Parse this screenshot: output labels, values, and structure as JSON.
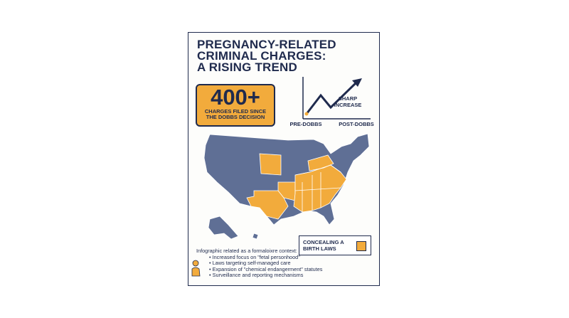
{
  "title_lines": [
    "PREGNANCY-RELATED",
    "CRIMINAL CHARGES:",
    "A RISING TREND"
  ],
  "stat": {
    "number": "400+",
    "caption_lines": [
      "CHARGES FILED SINCE",
      "THE DOBBS DECISION"
    ]
  },
  "trend": {
    "annotation_lines": [
      "SHARP",
      "INCREASE"
    ],
    "start_label": "PRE-DOBBS",
    "end_label": "POST-DOBBS"
  },
  "legend": {
    "label_lines": [
      "CONCEALING A",
      "BIRTH LAWS"
    ]
  },
  "context": {
    "intro": "Infographic related as a formaloixre context:",
    "bullets": [
      "Increased focus on \"fetal personhood\"",
      "Laws targeting self-managed care",
      "Expansion of \"chemical endangerment\" statutes",
      "Surveillance and reporting mechanisms"
    ]
  }
}
